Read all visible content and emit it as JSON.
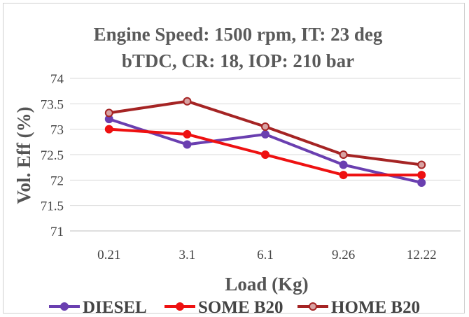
{
  "chart_data": {
    "type": "line",
    "title_line1": "Engine Speed: 1500 rpm, IT: 23 deg",
    "title_line2": "bTDC, CR: 18, IOP: 210 bar",
    "xlabel": "Load (Kg)",
    "ylabel": "Vol. Eff (%)",
    "categories": [
      "0.21",
      "3.1",
      "6.1",
      "9.26",
      "12.22"
    ],
    "ylim": [
      71,
      74
    ],
    "yticks": [
      "71",
      "71.5",
      "72",
      "72.5",
      "73",
      "73.5",
      "74"
    ],
    "ytick_values": [
      71,
      71.5,
      72,
      72.5,
      73,
      73.5,
      74
    ],
    "grid": true,
    "legend_position": "bottom",
    "series": [
      {
        "name": "DIESEL",
        "color": "#6a3fb0",
        "marker": "filled",
        "values": [
          73.2,
          72.7,
          72.9,
          72.3,
          71.95
        ]
      },
      {
        "name": "SOME B20",
        "color": "#ee1111",
        "marker": "filled",
        "values": [
          73.0,
          72.9,
          72.5,
          72.1,
          72.1
        ]
      },
      {
        "name": "HOME B20",
        "color": "#a52424",
        "marker": "hollow",
        "marker_fill": "#d8a3a3",
        "values": [
          73.32,
          73.55,
          73.05,
          72.5,
          72.3
        ]
      }
    ]
  }
}
